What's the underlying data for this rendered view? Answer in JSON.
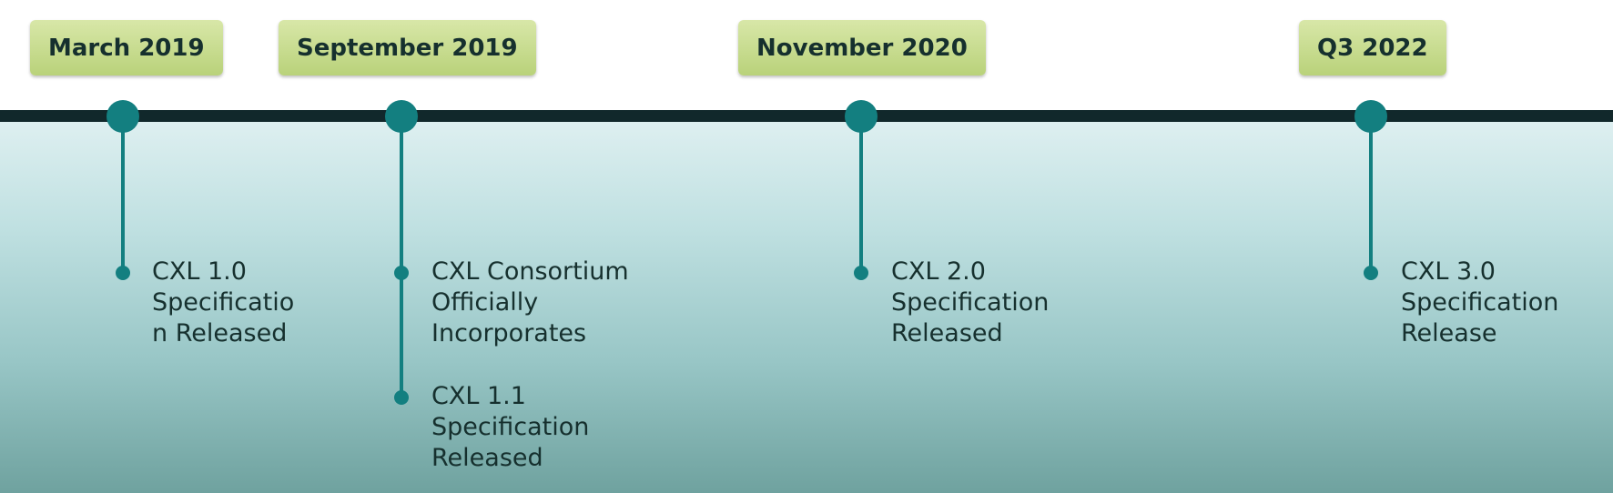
{
  "milestones": [
    {
      "date": "March 2019",
      "events": [
        "CXL 1.0\nSpecificatio\nn Released"
      ]
    },
    {
      "date": "September 2019",
      "events": [
        "CXL Consortium\nOfficially\nIncorporates",
        "CXL 1.1\nSpecification\nReleased"
      ]
    },
    {
      "date": "November 2020",
      "events": [
        "CXL 2.0\nSpecification\nReleased"
      ]
    },
    {
      "date": "Q3 2022",
      "events": [
        "CXL 3.0\nSpecification\nRelease"
      ]
    }
  ],
  "colors": {
    "timeline_bar": "#11282b",
    "node": "#137f80",
    "label_fill": "#c6dc8c",
    "text": "#16302e"
  }
}
